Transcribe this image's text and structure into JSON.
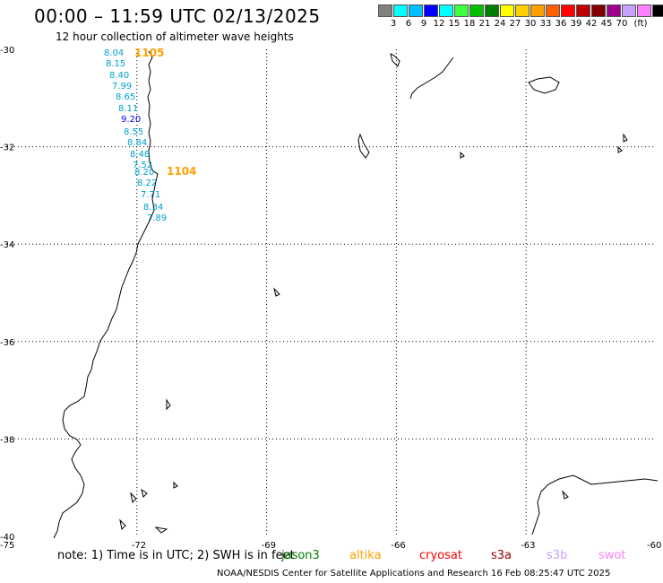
{
  "title": "00:00 – 11:59 UTC 02/13/2025",
  "subtitle": "12 hour collection of altimeter wave heights",
  "legend": {
    "colors": [
      "#808080",
      "#00ffff",
      "#00bfff",
      "#0000ff",
      "#00ffff",
      "#40ff40",
      "#00c000",
      "#008000",
      "#ffff00",
      "#ffd000",
      "#ffa000",
      "#ff6000",
      "#ff0000",
      "#c00000",
      "#800000",
      "#a00090",
      "#c8a0ff",
      "#ff80ff",
      "#000000"
    ],
    "labels": [
      "3",
      "6",
      "9",
      "12",
      "15",
      "18",
      "21",
      "24",
      "27",
      "30",
      "33",
      "36",
      "39",
      "42",
      "45",
      "70",
      "(ft)"
    ]
  },
  "axes": {
    "lat_labels": [
      "-30",
      "-32",
      "-34",
      "-36",
      "-38",
      "-40"
    ],
    "lon_labels": [
      "-75",
      "-72",
      "-69",
      "-66",
      "-63",
      "-60"
    ]
  },
  "map_data": {
    "lat_range": [
      -40,
      -30
    ],
    "lon_range": [
      -75,
      -60
    ],
    "gridlines": "dotted",
    "tracks": [
      {
        "id": "1105",
        "color": "#ffa000"
      },
      {
        "id": "1104",
        "color": "#ffa000"
      }
    ],
    "wave_heights": [
      {
        "value": "8.04",
        "color": "#00a0d0"
      },
      {
        "value": "8.15",
        "color": "#00a0d0"
      },
      {
        "value": "8.40",
        "color": "#00a0d0"
      },
      {
        "value": "7.99",
        "color": "#00a0d0"
      },
      {
        "value": "8.65",
        "color": "#00a0d0"
      },
      {
        "value": "8.11",
        "color": "#00a0d0"
      },
      {
        "value": "9.20",
        "color": "#0000ff"
      },
      {
        "value": "8.55",
        "color": "#00a0d0"
      },
      {
        "value": "8.84",
        "color": "#00a0d0"
      },
      {
        "value": "8.48",
        "color": "#00a0d0"
      },
      {
        "value": "7.52",
        "color": "#00a0d0"
      },
      {
        "value": "8.20",
        "color": "#00a0d0"
      },
      {
        "value": "8.22",
        "color": "#00a0d0"
      },
      {
        "value": "7.71",
        "color": "#00a0d0"
      },
      {
        "value": "8.34",
        "color": "#00a0d0"
      },
      {
        "value": "7.89",
        "color": "#00a0d0"
      }
    ]
  },
  "note": "note:  1) Time is in UTC;  2) SWH is in feet",
  "satellites": [
    {
      "name": "jason3",
      "color": "#008000"
    },
    {
      "name": "altika",
      "color": "#ffa000"
    },
    {
      "name": "cryosat",
      "color": "#ff0000"
    },
    {
      "name": "s3a",
      "color": "#900000"
    },
    {
      "name": "s3b",
      "color": "#c8a0ff"
    },
    {
      "name": "swot",
      "color": "#ff80ff"
    }
  ],
  "footer": "NOAA/NESDIS Center for Satellite Applications and Research    16 Feb 08:25:47 UTC 2025"
}
